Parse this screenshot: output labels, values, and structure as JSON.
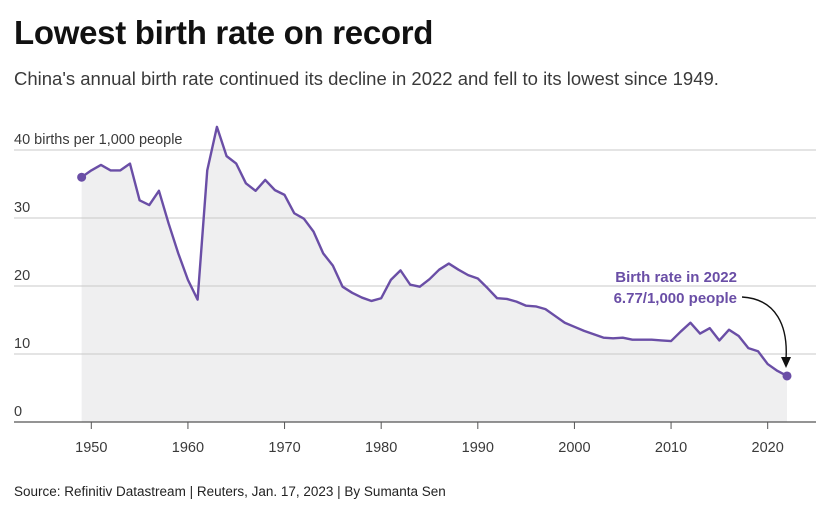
{
  "header": {
    "title": "Lowest birth rate on record",
    "subtitle": "China's annual birth rate continued its decline in 2022 and fell to its lowest since 1949."
  },
  "footer": {
    "source": "Source: Refinitiv Datastream | Reuters, Jan. 17, 2023 | By Sumanta Sen"
  },
  "colors": {
    "line": "#6a4ea6",
    "area": "#efeff0",
    "grid": "#c8c8c8",
    "axis": "#555555"
  },
  "chart_data": {
    "type": "area",
    "title": "Lowest birth rate on record",
    "subtitle": "China's annual birth rate continued its decline in 2022 and fell to its lowest since 1949.",
    "xlabel": "",
    "ylabel": "births per 1,000 people",
    "xlim": [
      1942,
      2025
    ],
    "ylim": [
      0,
      40
    ],
    "grid": true,
    "x_ticks": [
      1950,
      1960,
      1970,
      1980,
      1990,
      2000,
      2010,
      2020
    ],
    "y_ticks": [
      {
        "value": 0,
        "label": "0"
      },
      {
        "value": 10,
        "label": "10"
      },
      {
        "value": 20,
        "label": "20"
      },
      {
        "value": 30,
        "label": "30"
      },
      {
        "value": 40,
        "label": "40 births per 1,000 people"
      }
    ],
    "series": [
      {
        "x": [
          1949,
          1950,
          1951,
          1952,
          1953,
          1954,
          1955,
          1956,
          1957,
          1958,
          1959,
          1960,
          1961,
          1962,
          1963,
          1964,
          1965,
          1966,
          1967,
          1968,
          1969,
          1970,
          1971,
          1972,
          1973,
          1974,
          1975,
          1976,
          1977,
          1978,
          1979,
          1980,
          1981,
          1982,
          1983,
          1984,
          1985,
          1986,
          1987,
          1988,
          1989,
          1990,
          1991,
          1992,
          1993,
          1994,
          1995,
          1996,
          1997,
          1998,
          1999,
          2000,
          2001,
          2002,
          2003,
          2004,
          2005,
          2006,
          2007,
          2008,
          2009,
          2010,
          2011,
          2012,
          2013,
          2014,
          2015,
          2016,
          2017,
          2018,
          2019,
          2020,
          2021,
          2022
        ],
        "values": [
          36.0,
          37.0,
          37.8,
          37.0,
          37.0,
          38.0,
          32.6,
          31.9,
          34.0,
          29.2,
          24.8,
          20.9,
          18.0,
          37.0,
          43.4,
          39.1,
          38.0,
          35.1,
          34.0,
          35.6,
          34.1,
          33.4,
          30.7,
          29.9,
          28.0,
          24.8,
          23.0,
          19.9,
          19.0,
          18.3,
          17.8,
          18.2,
          20.9,
          22.3,
          20.2,
          19.9,
          21.0,
          22.4,
          23.3,
          22.4,
          21.6,
          21.1,
          19.7,
          18.2,
          18.1,
          17.7,
          17.1,
          17.0,
          16.6,
          15.6,
          14.6,
          14.0,
          13.4,
          12.9,
          12.4,
          12.3,
          12.4,
          12.1,
          12.1,
          12.1,
          12.0,
          11.9,
          13.3,
          14.6,
          13.0,
          13.8,
          11.99,
          13.57,
          12.64,
          10.86,
          10.41,
          8.52,
          7.52,
          6.77
        ]
      }
    ],
    "annotations": [
      {
        "x": 2022,
        "y": 6.77,
        "line1": "Birth rate in 2022",
        "line2": "6.77/1,000 people"
      }
    ]
  }
}
